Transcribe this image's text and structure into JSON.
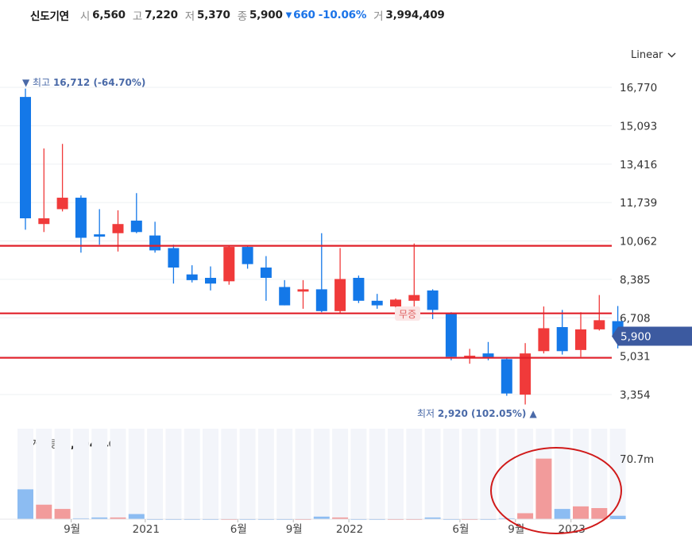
{
  "header": {
    "name": "신도기연",
    "open_label": "시",
    "open": "6,560",
    "high_label": "고",
    "high": "7,220",
    "low_label": "저",
    "low": "5,370",
    "close_label": "종",
    "close": "5,900",
    "change": "660",
    "change_pct": "-10.06%",
    "volume_label": "거",
    "volume": "3,994,409"
  },
  "scale_toggle": {
    "label": "Linear"
  },
  "volume_panel": {
    "label": "거래량",
    "value": "3,994,409",
    "axis_tick": "70.7m"
  },
  "annotations": {
    "max_label": "최고",
    "max_value": "16,712",
    "max_pct": "(-64.70%)",
    "min_label": "최저",
    "min_value": "2,920",
    "min_pct": "(102.05%)",
    "current_price": "5,900",
    "noneq_marker": "무증"
  },
  "colors": {
    "up": "#f03a3a",
    "down": "#1478e8",
    "line": "#e0202a",
    "price_tag": "#3c5aa0",
    "up_vol": "#f29b9b",
    "down_vol": "#8cbcf2"
  },
  "chart_data": {
    "type": "candlestick",
    "y_ticks": [
      "16,770",
      "15,093",
      "13,416",
      "11,739",
      "10,062",
      "8,385",
      "6,708",
      "5,031",
      "3,354"
    ],
    "x_ticks": [
      "9월",
      "2021",
      "6월",
      "9월",
      "2022",
      "6월",
      "9월",
      "2023"
    ],
    "horizontal_lines": [
      9850,
      6900,
      4960
    ],
    "ohlc": [
      {
        "o": 16350,
        "h": 16712,
        "l": 10550,
        "c": 11050
      },
      {
        "o": 10800,
        "h": 14100,
        "l": 10450,
        "c": 11050
      },
      {
        "o": 11450,
        "h": 14300,
        "l": 11350,
        "c": 11950
      },
      {
        "o": 11950,
        "h": 12050,
        "l": 9550,
        "c": 10200
      },
      {
        "o": 10350,
        "h": 11450,
        "l": 9900,
        "c": 10250
      },
      {
        "o": 10400,
        "h": 11400,
        "l": 9600,
        "c": 10800
      },
      {
        "o": 10950,
        "h": 12150,
        "l": 10400,
        "c": 10450
      },
      {
        "o": 10300,
        "h": 10900,
        "l": 9550,
        "c": 9650
      },
      {
        "o": 9750,
        "h": 9900,
        "l": 8200,
        "c": 8900
      },
      {
        "o": 8600,
        "h": 9000,
        "l": 8250,
        "c": 8350
      },
      {
        "o": 8450,
        "h": 8950,
        "l": 7900,
        "c": 8200
      },
      {
        "o": 8300,
        "h": 9850,
        "l": 8150,
        "c": 9800
      },
      {
        "o": 9800,
        "h": 9850,
        "l": 8850,
        "c": 9050
      },
      {
        "o": 8900,
        "h": 9400,
        "l": 7450,
        "c": 8450
      },
      {
        "o": 8050,
        "h": 8350,
        "l": 7250,
        "c": 7250
      },
      {
        "o": 7850,
        "h": 8350,
        "l": 7100,
        "c": 7950
      },
      {
        "o": 7950,
        "h": 10400,
        "l": 6950,
        "c": 7000
      },
      {
        "o": 7000,
        "h": 9750,
        "l": 6900,
        "c": 8400
      },
      {
        "o": 8450,
        "h": 8550,
        "l": 7350,
        "c": 7450
      },
      {
        "o": 7450,
        "h": 7750,
        "l": 7100,
        "c": 7250
      },
      {
        "o": 7200,
        "h": 7550,
        "l": 6900,
        "c": 7500
      },
      {
        "o": 7450,
        "h": 9950,
        "l": 7150,
        "c": 7700
      },
      {
        "o": 7900,
        "h": 7950,
        "l": 6650,
        "c": 7050
      },
      {
        "o": 6900,
        "h": 6950,
        "l": 4850,
        "c": 5000
      },
      {
        "o": 5000,
        "h": 5350,
        "l": 4700,
        "c": 5050
      },
      {
        "o": 5150,
        "h": 5650,
        "l": 4850,
        "c": 4950
      },
      {
        "o": 4900,
        "h": 4950,
        "l": 3300,
        "c": 3400
      },
      {
        "o": 3350,
        "h": 5600,
        "l": 2920,
        "c": 5150
      },
      {
        "o": 5250,
        "h": 7200,
        "l": 5150,
        "c": 6250
      },
      {
        "o": 6300,
        "h": 7050,
        "l": 5100,
        "c": 5250
      },
      {
        "o": 5300,
        "h": 6950,
        "l": 5000,
        "c": 6200
      },
      {
        "o": 6200,
        "h": 7700,
        "l": 6150,
        "c": 6600
      },
      {
        "o": 6560,
        "h": 7220,
        "l": 5370,
        "c": 5900
      }
    ],
    "volume_millions": [
      35,
      17,
      12,
      1,
      2,
      2,
      6,
      0.5,
      0.5,
      0.5,
      0.5,
      0.5,
      0.5,
      0.5,
      0.5,
      0.5,
      3,
      2,
      0.5,
      0.5,
      0.5,
      0.5,
      2,
      0.5,
      0.5,
      0.5,
      1,
      7,
      71,
      12,
      15,
      13,
      3.994
    ]
  }
}
